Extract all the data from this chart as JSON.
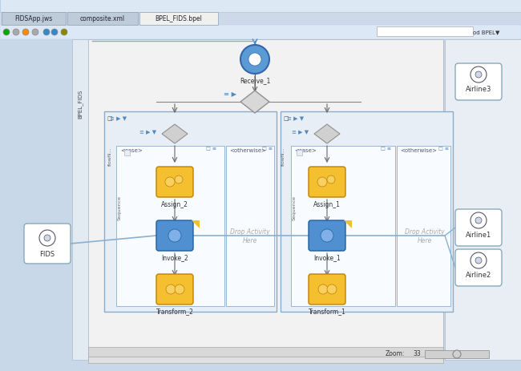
{
  "tab_labels": [
    "FIDSApp.jws",
    "composite.xml",
    "BPEL_FIDS.bpel"
  ],
  "zoom_text": "33",
  "bg_main": "#c8d8e8",
  "toolbar_bg": "#dce8f6",
  "tab_active_bg": "#f0f0f0",
  "tab_inactive_bg": "#c8d8e8",
  "canvas_bg": "#f0f0f0",
  "left_strip_bg": "#e0e8f0",
  "right_panel_bg": "#e8eef4",
  "flow_outer_bg": "#e4ecf4",
  "flow_inner_bg": "#eef4fa",
  "case_bg": "#f8fbff",
  "node_yellow": "#f5c030",
  "node_blue": "#5090d0",
  "node_blue_edge": "#2060a0",
  "node_yellow_edge": "#c08000",
  "diamond_color": "#d8d8d8",
  "diamond_edge": "#909090",
  "receive_blue": "#5090d0",
  "service_box_bg": "#ffffff",
  "service_box_edge": "#88b0cc",
  "line_blue": "#8ab0d0",
  "arrow_color": "#666666",
  "text_dark": "#333333",
  "text_gray": "#888888",
  "scroll_bg": "#e0e0e0"
}
